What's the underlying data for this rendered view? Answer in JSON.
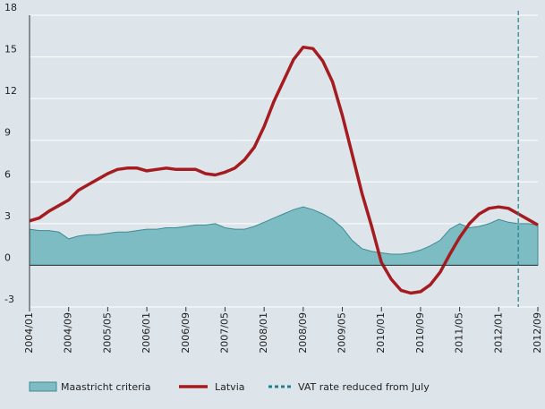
{
  "chart_data": {
    "type": "area_line",
    "x": [
      "2004/01",
      "2004/03",
      "2004/05",
      "2004/07",
      "2004/09",
      "2004/11",
      "2005/01",
      "2005/03",
      "2005/05",
      "2005/07",
      "2005/09",
      "2005/11",
      "2006/01",
      "2006/03",
      "2006/05",
      "2006/07",
      "2006/09",
      "2006/11",
      "2007/01",
      "2007/03",
      "2007/05",
      "2007/07",
      "2007/09",
      "2007/11",
      "2008/01",
      "2008/03",
      "2008/05",
      "2008/07",
      "2008/09",
      "2008/11",
      "2009/01",
      "2009/03",
      "2009/05",
      "2009/07",
      "2009/09",
      "2009/11",
      "2010/01",
      "2010/03",
      "2010/05",
      "2010/07",
      "2010/09",
      "2010/11",
      "2011/01",
      "2011/03",
      "2011/05",
      "2011/07",
      "2011/09",
      "2011/11",
      "2012/01",
      "2012/03",
      "2012/05",
      "2012/07",
      "2012/09"
    ],
    "xticks": [
      "2004/01",
      "2004/09",
      "2005/05",
      "2006/01",
      "2006/09",
      "2007/05",
      "2008/01",
      "2008/09",
      "2009/05",
      "2010/01",
      "2010/09",
      "2011/05",
      "2012/01",
      "2012/09"
    ],
    "series": [
      {
        "name": "Maastricht criteria",
        "kind": "area",
        "color": "#7dbcc3",
        "values": [
          2.6,
          2.5,
          2.5,
          2.4,
          1.9,
          2.1,
          2.2,
          2.2,
          2.3,
          2.4,
          2.4,
          2.5,
          2.6,
          2.6,
          2.7,
          2.7,
          2.8,
          2.9,
          2.9,
          3.0,
          2.7,
          2.6,
          2.6,
          2.8,
          3.1,
          3.4,
          3.7,
          4.0,
          4.2,
          4.0,
          3.7,
          3.3,
          2.7,
          1.8,
          1.2,
          1.0,
          0.9,
          0.8,
          0.8,
          0.9,
          1.1,
          1.4,
          1.8,
          2.6,
          3.0,
          2.7,
          2.8,
          3.0,
          3.3,
          3.1,
          3.0,
          3.0,
          2.9
        ]
      },
      {
        "name": "Latvia",
        "kind": "line",
        "color": "#a51c20",
        "values": [
          3.2,
          3.4,
          3.9,
          4.3,
          4.7,
          5.4,
          5.8,
          6.2,
          6.6,
          6.9,
          7.0,
          7.0,
          6.8,
          6.9,
          7.0,
          6.9,
          6.9,
          6.9,
          6.6,
          6.5,
          6.7,
          7.0,
          7.6,
          8.5,
          10.0,
          11.8,
          13.3,
          14.8,
          15.7,
          15.6,
          14.7,
          13.2,
          10.8,
          8.0,
          5.2,
          2.8,
          0.2,
          -1.0,
          -1.8,
          -2.0,
          -1.9,
          -1.4,
          -0.5,
          0.8,
          2.0,
          3.0,
          3.7,
          4.1,
          4.2,
          4.1,
          3.7,
          3.3,
          2.9
        ]
      }
    ],
    "vline": {
      "name": "VAT rate reduced from July",
      "x": "2012/05",
      "color": "#1f7f8a"
    },
    "ylim": [
      -3,
      18
    ],
    "yticks": [
      -3,
      0,
      3,
      6,
      9,
      12,
      15,
      18
    ],
    "grid": true
  }
}
